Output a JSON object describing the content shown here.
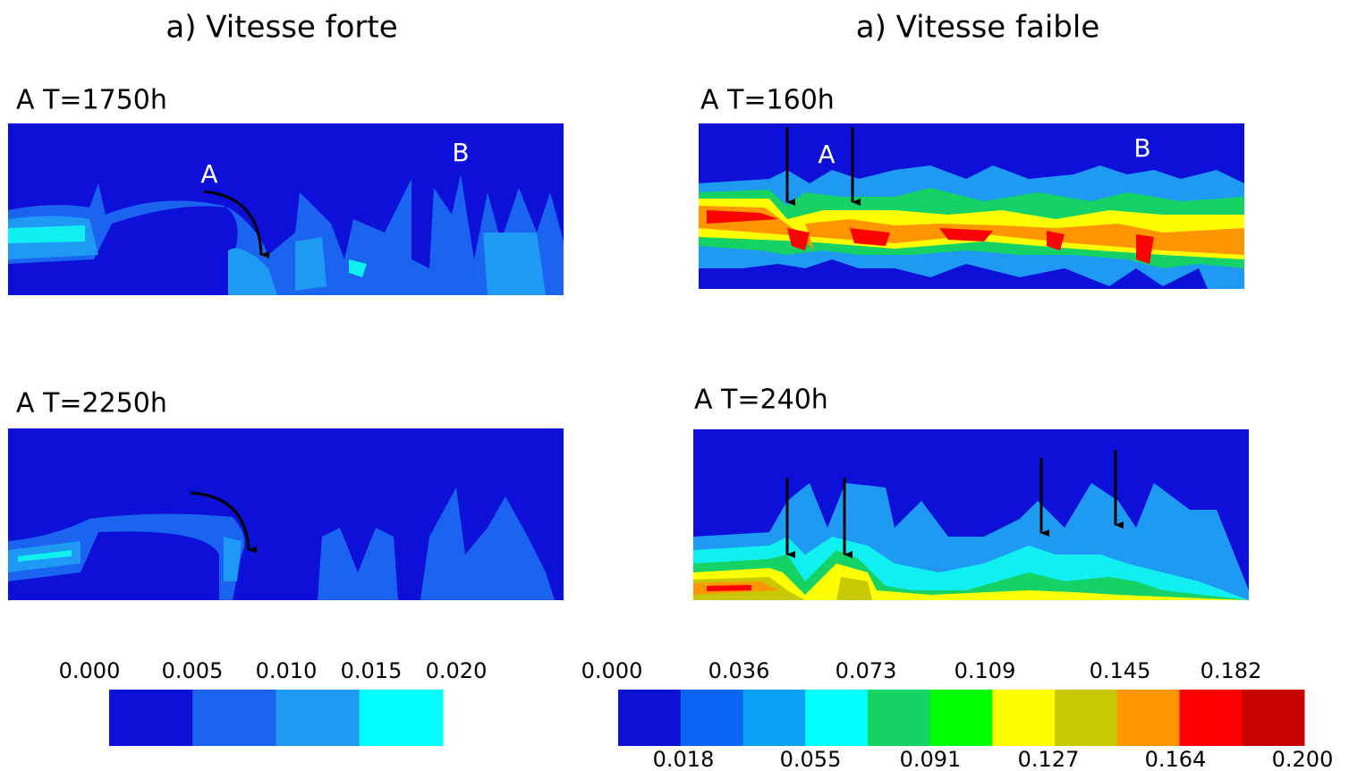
{
  "columns": [
    {
      "title": "a) Vitesse forte",
      "panels": [
        {
          "label": "A T=1750h",
          "annotations": [
            "A",
            "B"
          ]
        },
        {
          "label": "A T=2250h",
          "annotations": []
        }
      ],
      "colorbar": {
        "above": [
          "0.000",
          "0.005",
          "0.010",
          "0.015",
          "0.020"
        ],
        "below": []
      }
    },
    {
      "title": "a) Vitesse faible",
      "panels": [
        {
          "label": "A T=160h",
          "annotations": [
            "A",
            "B"
          ]
        },
        {
          "label": "A T=240h",
          "annotations": []
        }
      ],
      "colorbar": {
        "above": [
          "0.000",
          "0.036",
          "0.073",
          "0.109",
          "0.145",
          "0.182"
        ],
        "below": [
          "0.018",
          "0.055",
          "0.091",
          "0.127",
          "0.164",
          "0.200"
        ]
      }
    }
  ]
}
